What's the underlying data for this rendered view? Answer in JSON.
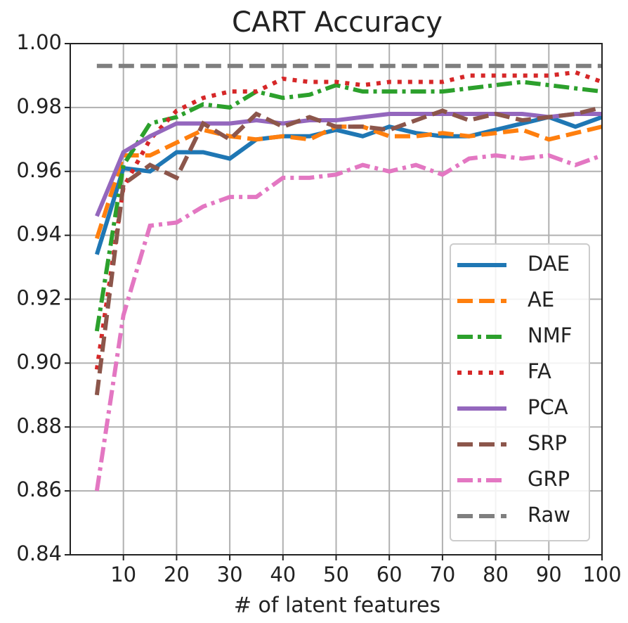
{
  "chart_data": {
    "type": "line",
    "title": "CART Accuracy",
    "xlabel": "# of latent features",
    "x": [
      5,
      10,
      15,
      20,
      25,
      30,
      35,
      40,
      45,
      50,
      55,
      60,
      65,
      70,
      75,
      80,
      85,
      90,
      95,
      100
    ],
    "xlim": [
      0,
      100
    ],
    "ylim": [
      0.84,
      1.0
    ],
    "xticks": [
      10,
      20,
      30,
      40,
      50,
      60,
      70,
      80,
      90,
      100
    ],
    "yticks": [
      {
        "value": 0.84,
        "label": "0.84"
      },
      {
        "value": 0.86,
        "label": "0.86"
      },
      {
        "value": 0.88,
        "label": "0.88"
      },
      {
        "value": 0.9,
        "label": "0.90"
      },
      {
        "value": 0.92,
        "label": "0.92"
      },
      {
        "value": 0.94,
        "label": "0.94"
      },
      {
        "value": 0.96,
        "label": "0.96"
      },
      {
        "value": 0.98,
        "label": "0.98"
      },
      {
        "value": 1.0,
        "label": "1.00"
      }
    ],
    "grid": true,
    "legend": "lower right",
    "series": [
      {
        "name": "DAE",
        "color": "#1f77b4",
        "linestyle": "solid",
        "values": [
          0.934,
          0.961,
          0.96,
          0.966,
          0.966,
          0.964,
          0.97,
          0.971,
          0.971,
          0.973,
          0.971,
          0.974,
          0.972,
          0.971,
          0.971,
          0.973,
          0.975,
          0.977,
          0.974,
          0.977
        ]
      },
      {
        "name": "AE",
        "color": "#ff7f0e",
        "linestyle": "dashed",
        "values": [
          0.939,
          0.965,
          0.965,
          0.969,
          0.973,
          0.971,
          0.97,
          0.971,
          0.97,
          0.974,
          0.974,
          0.971,
          0.971,
          0.972,
          0.971,
          0.972,
          0.973,
          0.97,
          0.972,
          0.974
        ]
      },
      {
        "name": "NMF",
        "color": "#2ca02c",
        "linestyle": "dashdot",
        "values": [
          0.91,
          0.962,
          0.975,
          0.977,
          0.981,
          0.98,
          0.985,
          0.983,
          0.984,
          0.987,
          0.985,
          0.985,
          0.985,
          0.985,
          0.986,
          0.987,
          0.988,
          0.987,
          0.986,
          0.985
        ]
      },
      {
        "name": "FA",
        "color": "#d62728",
        "linestyle": "dotted",
        "values": [
          0.898,
          0.955,
          0.97,
          0.979,
          0.983,
          0.985,
          0.985,
          0.989,
          0.988,
          0.988,
          0.987,
          0.988,
          0.988,
          0.988,
          0.99,
          0.99,
          0.99,
          0.99,
          0.991,
          0.988
        ]
      },
      {
        "name": "PCA",
        "color": "#9467bd",
        "linestyle": "solid",
        "values": [
          0.946,
          0.966,
          0.971,
          0.975,
          0.975,
          0.975,
          0.976,
          0.975,
          0.976,
          0.976,
          0.977,
          0.978,
          0.978,
          0.978,
          0.978,
          0.978,
          0.978,
          0.977,
          0.978,
          0.978
        ]
      },
      {
        "name": "SRP",
        "color": "#8c564b",
        "linestyle": "dashed",
        "values": [
          0.89,
          0.956,
          0.962,
          0.958,
          0.975,
          0.97,
          0.978,
          0.974,
          0.977,
          0.974,
          0.974,
          0.973,
          0.976,
          0.979,
          0.976,
          0.978,
          0.976,
          0.977,
          0.978,
          0.98
        ]
      },
      {
        "name": "GRP",
        "color": "#e377c2",
        "linestyle": "dashdot",
        "values": [
          0.86,
          0.915,
          0.943,
          0.944,
          0.949,
          0.952,
          0.952,
          0.958,
          0.958,
          0.959,
          0.962,
          0.96,
          0.962,
          0.959,
          0.964,
          0.965,
          0.964,
          0.965,
          0.962,
          0.965
        ]
      },
      {
        "name": "Raw",
        "color": "#7f7f7f",
        "linestyle": "dashed",
        "values": [
          0.993,
          0.993,
          0.993,
          0.993,
          0.993,
          0.993,
          0.993,
          0.993,
          0.993,
          0.993,
          0.993,
          0.993,
          0.993,
          0.993,
          0.993,
          0.993,
          0.993,
          0.993,
          0.993,
          0.993
        ]
      }
    ]
  }
}
